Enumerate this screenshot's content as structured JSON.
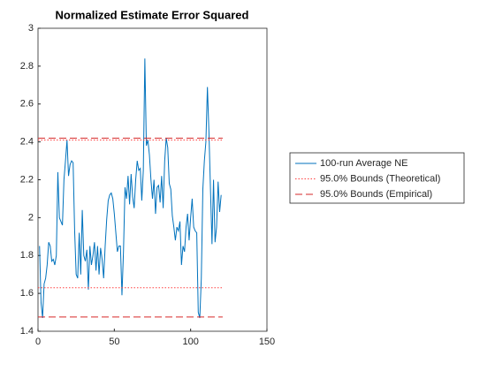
{
  "chart_data": {
    "type": "line",
    "title": "Normalized Estimate Error Squared",
    "x": [
      1,
      2,
      3,
      4,
      5,
      6,
      7,
      8,
      9,
      10,
      11,
      12,
      13,
      14,
      15,
      16,
      17,
      18,
      19,
      20,
      21,
      22,
      23,
      24,
      25,
      26,
      27,
      28,
      29,
      30,
      31,
      32,
      33,
      34,
      35,
      36,
      37,
      38,
      39,
      40,
      41,
      42,
      43,
      44,
      45,
      46,
      47,
      48,
      49,
      50,
      51,
      52,
      53,
      54,
      55,
      56,
      57,
      58,
      59,
      60,
      61,
      62,
      63,
      64,
      65,
      66,
      67,
      68,
      69,
      70,
      71,
      72,
      73,
      74,
      75,
      76,
      77,
      78,
      79,
      80,
      81,
      82,
      83,
      84,
      85,
      86,
      87,
      88,
      89,
      90,
      91,
      92,
      93,
      94,
      95,
      96,
      97,
      98,
      99,
      100,
      101,
      102,
      103,
      104,
      105,
      106,
      107,
      108,
      109,
      110,
      111,
      112,
      113,
      114,
      115,
      116,
      117,
      118,
      119,
      120
    ],
    "series": [
      {
        "name": "100-run Average NE",
        "color": "#0072bd",
        "style": "solid",
        "values": [
          1.85,
          1.55,
          1.47,
          1.65,
          1.68,
          1.75,
          1.87,
          1.85,
          1.77,
          1.78,
          1.75,
          1.8,
          2.24,
          2.0,
          1.98,
          1.96,
          2.2,
          2.3,
          2.41,
          2.22,
          2.28,
          2.3,
          2.29,
          1.93,
          1.7,
          1.68,
          1.92,
          1.7,
          2.04,
          1.8,
          1.77,
          1.83,
          1.62,
          1.85,
          1.75,
          1.8,
          1.87,
          1.72,
          1.85,
          1.7,
          1.84,
          1.78,
          1.68,
          1.85,
          1.99,
          2.09,
          2.12,
          2.13,
          2.1,
          2.02,
          1.92,
          1.82,
          1.85,
          1.85,
          1.59,
          1.82,
          2.16,
          2.1,
          2.22,
          2.07,
          2.23,
          2.11,
          2.05,
          2.2,
          2.3,
          2.25,
          2.26,
          2.09,
          2.25,
          2.84,
          2.38,
          2.41,
          2.33,
          2.2,
          2.1,
          2.2,
          2.02,
          2.16,
          2.17,
          2.08,
          2.22,
          2.05,
          2.3,
          2.42,
          2.37,
          2.18,
          2.15,
          2.01,
          1.95,
          1.88,
          1.95,
          1.93,
          1.98,
          1.75,
          1.85,
          1.82,
          1.95,
          2.02,
          1.88,
          2.0,
          2.1,
          1.95,
          1.93,
          1.92,
          1.5,
          1.47,
          1.68,
          2.15,
          2.3,
          2.4,
          2.69,
          2.45,
          2.15,
          1.86,
          2.2,
          1.87,
          1.95,
          2.19,
          2.03,
          2.12
        ]
      },
      {
        "name": "95.0% Bounds (Theoretical)",
        "color": "#ff4040",
        "style": "dotted",
        "bounds": [
          1.63,
          2.41
        ]
      },
      {
        "name": "95.0% Bounds (Empirical)",
        "color": "#d62728",
        "style": "dashed",
        "bounds": [
          1.475,
          2.42
        ]
      }
    ],
    "xlim": [
      0,
      150
    ],
    "xticks": [
      0,
      50,
      100,
      150
    ],
    "ylim": [
      1.4,
      3
    ],
    "yticks": [
      1.4,
      1.6,
      1.8,
      2,
      2.2,
      2.4,
      2.6,
      2.8,
      3
    ],
    "legend": "right"
  }
}
